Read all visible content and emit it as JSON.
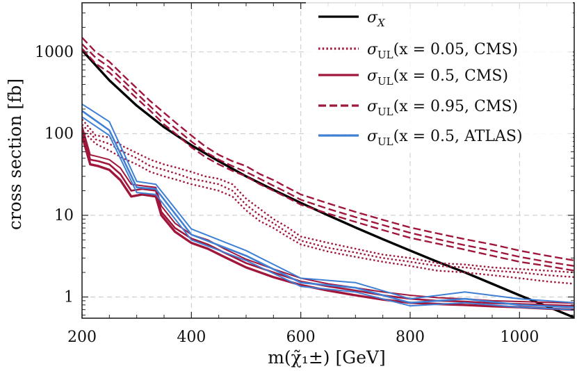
{
  "chart_data": {
    "type": "line",
    "title": "",
    "xlabel": "m(χ̃₁±) [GeV]",
    "ylabel": "cross section [fb]",
    "xlim": [
      200,
      1100
    ],
    "ylim": [
      0.55,
      4000
    ],
    "yscale": "log",
    "x_ticks": [
      200,
      400,
      600,
      800,
      1000
    ],
    "y_ticks": [
      {
        "value": 1,
        "label": "1"
      },
      {
        "value": 10,
        "label": "10"
      },
      {
        "value": 100,
        "label": "100"
      },
      {
        "value": 1000,
        "label": "1000"
      }
    ],
    "grid": true,
    "legend": "top-right",
    "colors": {
      "black": "#000000",
      "cms": "#a1173b",
      "atlas": "#3f7fd4"
    },
    "legend_entries": [
      {
        "name": "σX",
        "main": "σ",
        "sub": "X",
        "args": "",
        "color": "#000000",
        "dash": "solid"
      },
      {
        "name": "σUL(x = 0.05, CMS)",
        "main": "σ",
        "sub": "UL",
        "args": "(x = 0.05, CMS)",
        "color": "#a1173b",
        "dash": "dotted"
      },
      {
        "name": "σUL(x = 0.5, CMS)",
        "main": "σ",
        "sub": "UL",
        "args": "(x = 0.5, CMS)",
        "color": "#a1173b",
        "dash": "solid"
      },
      {
        "name": "σUL(x = 0.95, CMS)",
        "main": "σ",
        "sub": "UL",
        "args": "(x = 0.95, CMS)",
        "color": "#a1173b",
        "dash": "dashed"
      },
      {
        "name": "σUL(x = 0.5, ATLAS)",
        "main": "σ",
        "sub": "UL",
        "args": "(x = 0.5, ATLAS)",
        "color": "#3f7fd4",
        "dash": "solid"
      }
    ],
    "series": [
      {
        "name": "σX",
        "color": "#000000",
        "dash": "solid",
        "width": 3.4,
        "x": [
          200,
          250,
          300,
          350,
          400,
          450,
          500,
          550,
          600,
          650,
          700,
          750,
          800,
          850,
          900,
          950,
          1000,
          1050,
          1100
        ],
        "y": [
          1050,
          450,
          220,
          120,
          72,
          46,
          30,
          20.5,
          14.2,
          10,
          7.1,
          5.1,
          3.7,
          2.7,
          2.0,
          1.45,
          1.05,
          0.77,
          0.56
        ]
      },
      {
        "name": "σUL(x = 0.05, CMS)",
        "color": "#a1173b",
        "dash": "dotted",
        "width": 2.4,
        "x": [
          200,
          225,
          250,
          275,
          300,
          325,
          350,
          375,
          400,
          425,
          450,
          475,
          500,
          525,
          550,
          575,
          600,
          650,
          700,
          750,
          800,
          850,
          900,
          950,
          1000,
          1050,
          1100
        ],
        "y": [
          150,
          95,
          90,
          70,
          58,
          48,
          42,
          38,
          34,
          30,
          28,
          24,
          16,
          12,
          9,
          7.2,
          5.5,
          4.6,
          3.9,
          3.3,
          3.0,
          2.6,
          2.5,
          2.3,
          2.2,
          2.1,
          2.0
        ]
      },
      {
        "name": "σUL(x = 0.05, CMS)",
        "color": "#a1173b",
        "dash": "dotted",
        "width": 2.4,
        "x": [
          200,
          225,
          250,
          275,
          300,
          325,
          350,
          375,
          400,
          425,
          450,
          475,
          500,
          525,
          550,
          575,
          600,
          650,
          700,
          750,
          800,
          850,
          900,
          950,
          1000,
          1050,
          1100
        ],
        "y": [
          130,
          85,
          75,
          60,
          50,
          40,
          36,
          32,
          28,
          26,
          24,
          20,
          13.5,
          10,
          8,
          6.2,
          4.9,
          4.0,
          3.5,
          3.0,
          2.7,
          2.4,
          2.3,
          2.1,
          2.0,
          1.85,
          1.75
        ]
      },
      {
        "name": "σUL(x = 0.05, CMS)",
        "color": "#a1173b",
        "dash": "dotted",
        "width": 2.4,
        "x": [
          200,
          225,
          250,
          275,
          300,
          325,
          350,
          375,
          400,
          425,
          450,
          475,
          500,
          525,
          550,
          575,
          600,
          650,
          700,
          750,
          800,
          850,
          900,
          950,
          1000,
          1050,
          1100
        ],
        "y": [
          110,
          75,
          62,
          50,
          42,
          34,
          30,
          27,
          24,
          22,
          20,
          17,
          11.5,
          8.5,
          7,
          5.5,
          4.4,
          3.6,
          3.1,
          2.7,
          2.4,
          2.1,
          2.0,
          1.85,
          1.7,
          1.55,
          1.45
        ]
      },
      {
        "name": "σUL(x = 0.5, CMS)",
        "color": "#a1173b",
        "dash": "solid",
        "width": 2.0,
        "x": [
          200,
          215,
          230,
          250,
          270,
          290,
          310,
          335,
          345,
          370,
          400,
          430,
          460,
          500,
          550,
          600,
          650,
          700,
          750,
          800,
          850,
          900,
          950,
          1000,
          1050,
          1100
        ],
        "y": [
          125,
          55,
          52,
          48,
          38,
          24,
          23,
          22,
          13,
          8,
          5.8,
          5.0,
          3.9,
          2.9,
          2.2,
          1.7,
          1.45,
          1.3,
          1.15,
          1.05,
          0.98,
          0.95,
          0.9,
          0.88,
          0.86,
          0.84
        ]
      },
      {
        "name": "σUL(x = 0.5, CMS)",
        "color": "#a1173b",
        "dash": "solid",
        "width": 2.6,
        "x": [
          200,
          215,
          230,
          250,
          270,
          290,
          310,
          335,
          345,
          370,
          400,
          430,
          460,
          500,
          550,
          600,
          650,
          700,
          750,
          800,
          850,
          900,
          950,
          1000,
          1050,
          1100
        ],
        "y": [
          110,
          48,
          46,
          42,
          32,
          20,
          21,
          20,
          11,
          7,
          5.2,
          4.4,
          3.5,
          2.6,
          2.0,
          1.55,
          1.35,
          1.2,
          1.05,
          0.95,
          0.9,
          0.88,
          0.84,
          0.82,
          0.8,
          0.78
        ]
      },
      {
        "name": "σUL(x = 0.5, CMS)",
        "color": "#a1173b",
        "dash": "solid",
        "width": 3.4,
        "x": [
          200,
          215,
          230,
          250,
          270,
          290,
          310,
          335,
          345,
          370,
          400,
          430,
          460,
          500,
          550,
          600,
          650,
          700,
          750,
          800,
          850,
          900,
          950,
          1000,
          1050,
          1100
        ],
        "y": [
          95,
          42,
          40,
          36,
          27,
          17,
          18,
          17,
          10,
          6.3,
          4.6,
          3.9,
          3.1,
          2.3,
          1.75,
          1.4,
          1.2,
          1.05,
          0.93,
          0.85,
          0.82,
          0.8,
          0.77,
          0.75,
          0.72,
          0.7
        ]
      },
      {
        "name": "σUL(x = 0.95, CMS)",
        "color": "#a1173b",
        "dash": "dashed",
        "width": 2.4,
        "x": [
          200,
          225,
          250,
          275,
          300,
          325,
          350,
          375,
          400,
          425,
          450,
          475,
          500,
          525,
          550,
          575,
          600,
          650,
          700,
          750,
          800,
          850,
          900,
          950,
          1000,
          1050,
          1100
        ],
        "y": [
          1500,
          1000,
          760,
          520,
          360,
          250,
          180,
          130,
          95,
          70,
          55,
          46,
          40,
          32,
          27,
          22,
          18,
          14,
          11,
          8.8,
          7.1,
          6.0,
          5.1,
          4.4,
          3.7,
          3.2,
          2.8
        ]
      },
      {
        "name": "σUL(x = 0.95, CMS)",
        "color": "#a1173b",
        "dash": "dashed",
        "width": 2.4,
        "x": [
          200,
          225,
          250,
          275,
          300,
          325,
          350,
          375,
          400,
          425,
          450,
          475,
          500,
          525,
          550,
          575,
          600,
          650,
          700,
          750,
          800,
          850,
          900,
          950,
          1000,
          1050,
          1100
        ],
        "y": [
          1250,
          850,
          650,
          450,
          310,
          215,
          150,
          110,
          80,
          60,
          48,
          40,
          34,
          28,
          23,
          19,
          15.5,
          12,
          9.5,
          7.6,
          6.1,
          5.1,
          4.3,
          3.7,
          3.1,
          2.7,
          2.4
        ]
      },
      {
        "name": "σUL(x = 0.95, CMS)",
        "color": "#a1173b",
        "dash": "dashed",
        "width": 2.4,
        "x": [
          200,
          225,
          250,
          275,
          300,
          325,
          350,
          375,
          400,
          425,
          450,
          475,
          500,
          525,
          550,
          575,
          600,
          650,
          700,
          750,
          800,
          850,
          900,
          950,
          1000,
          1050,
          1100
        ],
        "y": [
          1100,
          720,
          560,
          390,
          270,
          190,
          130,
          95,
          68,
          52,
          42,
          35,
          30,
          24,
          20,
          16.5,
          13.5,
          10.5,
          8.3,
          6.6,
          5.3,
          4.5,
          3.8,
          3.2,
          2.7,
          2.4,
          2.1
        ]
      },
      {
        "name": "σUL(x = 0.5, ATLAS)",
        "color": "#3f7fd4",
        "dash": "solid",
        "width": 2.0,
        "x": [
          200,
          250,
          300,
          335,
          400,
          500,
          600,
          700,
          800,
          900,
          1000,
          1100
        ],
        "y": [
          230,
          140,
          26,
          24,
          6.8,
          3.7,
          1.7,
          1.5,
          0.95,
          1.15,
          0.95,
          0.85
        ]
      },
      {
        "name": "σUL(x = 0.5, ATLAS)",
        "color": "#3f7fd4",
        "dash": "solid",
        "width": 2.6,
        "x": [
          200,
          250,
          300,
          335,
          400,
          500,
          600,
          700,
          800,
          900,
          1000,
          1100
        ],
        "y": [
          190,
          110,
          22,
          21,
          5.8,
          3.2,
          1.5,
          1.3,
          0.85,
          0.95,
          0.8,
          0.75
        ]
      },
      {
        "name": "σUL(x = 0.5, ATLAS)",
        "color": "#3f7fd4",
        "dash": "solid",
        "width": 2.0,
        "x": [
          200,
          250,
          300,
          335,
          400,
          500,
          600,
          700,
          800,
          900,
          1000,
          1100
        ],
        "y": [
          160,
          95,
          19,
          18,
          5.0,
          2.8,
          1.35,
          1.15,
          0.78,
          0.85,
          0.75,
          0.7
        ]
      }
    ]
  }
}
